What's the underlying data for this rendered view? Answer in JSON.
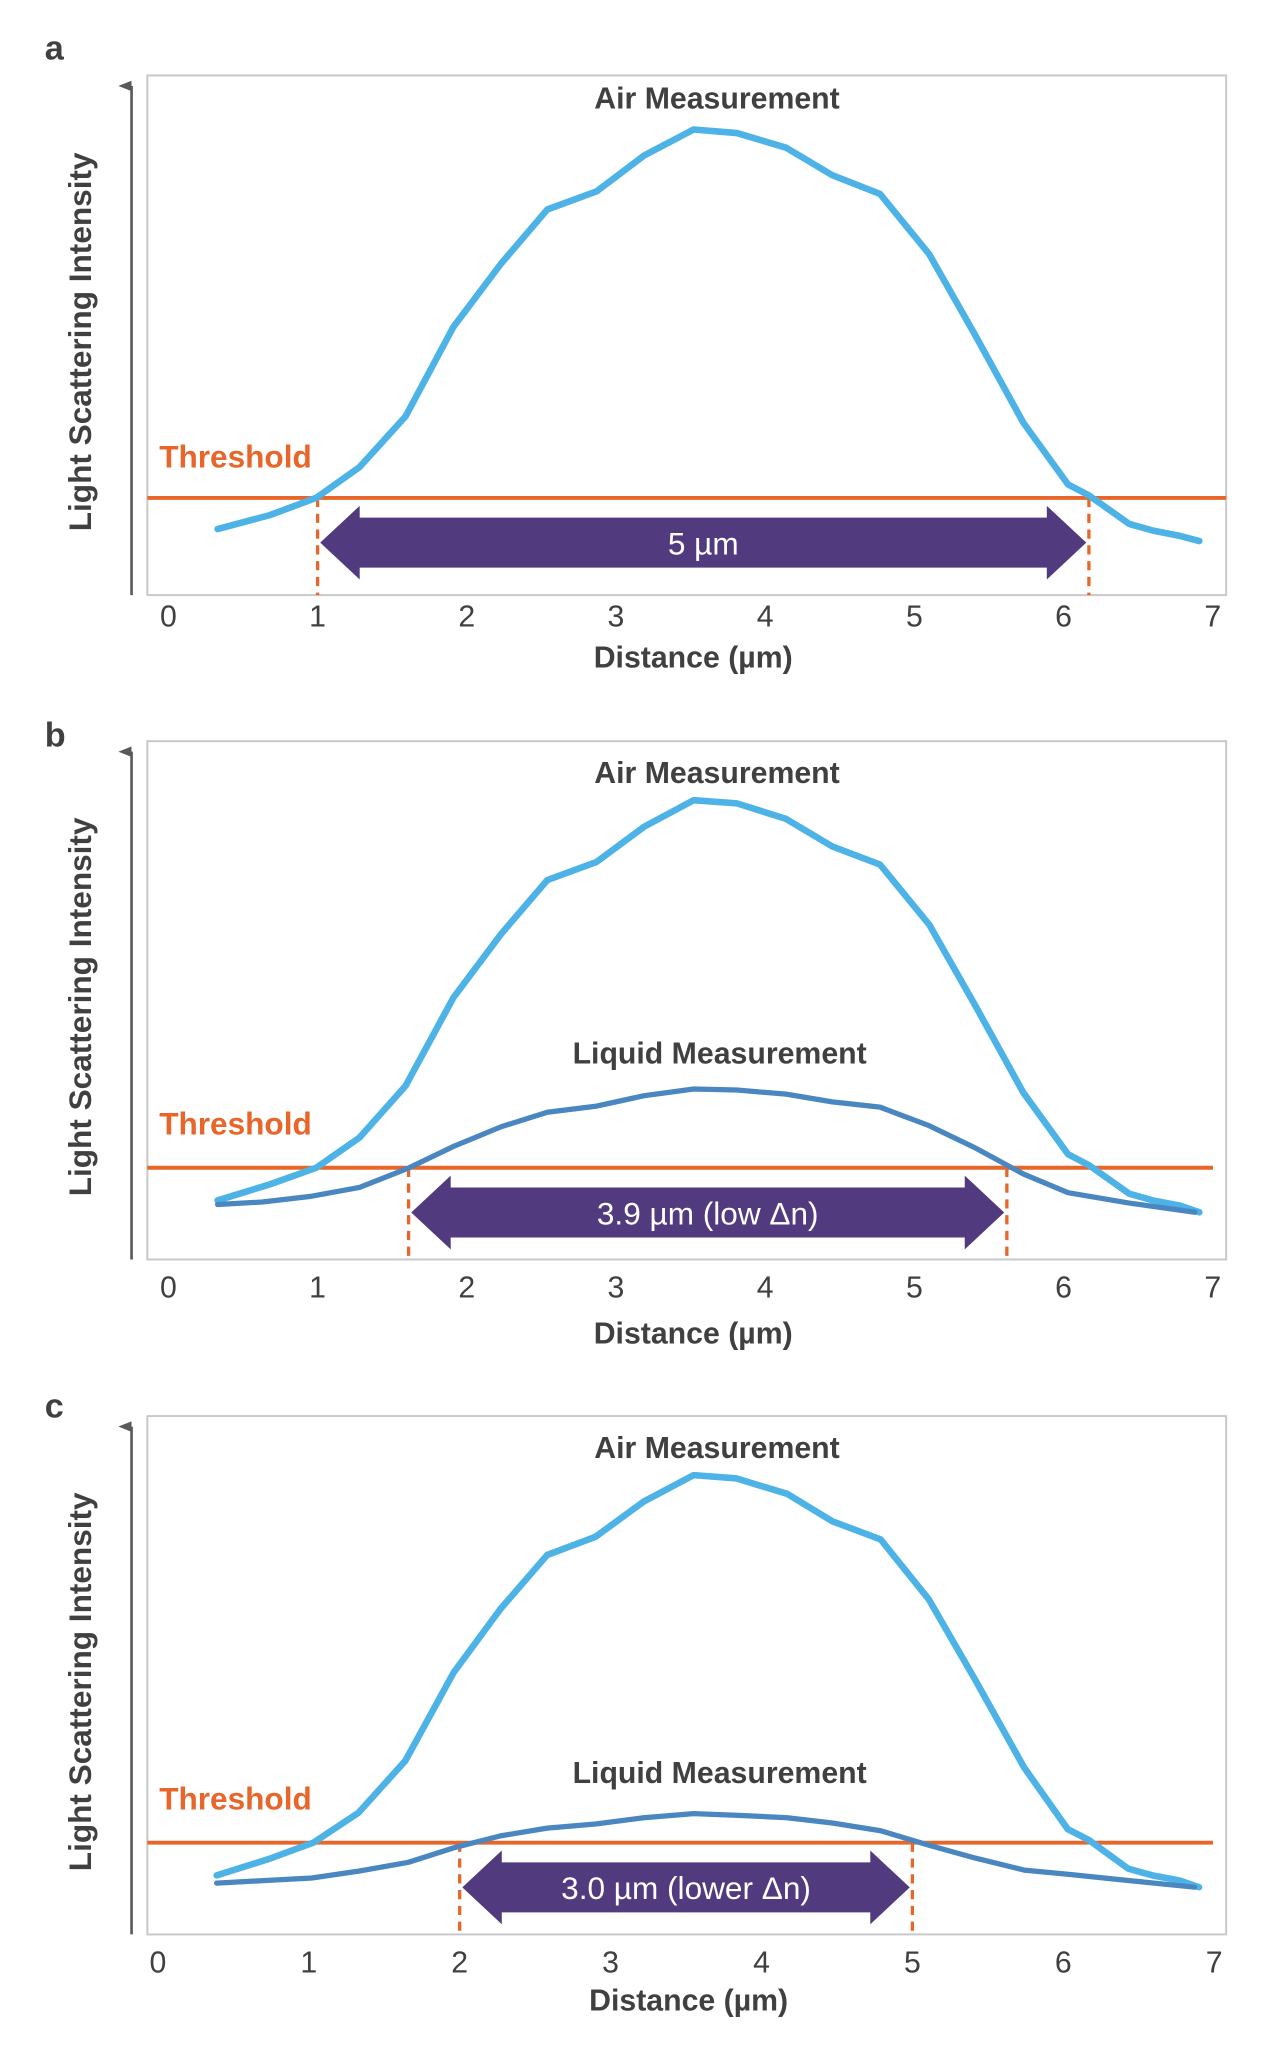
{
  "colors": {
    "air": "#4db3e6",
    "liquid": "#4a86c0",
    "threshold": "#e8662a",
    "arrow": "#523a7e",
    "text": "#404040",
    "frame": "#c8c8c8"
  },
  "chart_data": [
    {
      "type": "line",
      "panel_label": "a",
      "xlabel": "Distance (µm)",
      "ylabel": "Light Scattering Intensity",
      "xlim": [
        0,
        7
      ],
      "ylim": [
        0,
        100
      ],
      "xticks": [
        "0",
        "1",
        "2",
        "3",
        "4",
        "5",
        "6",
        "7"
      ],
      "grid": false,
      "threshold": {
        "label": "Threshold",
        "value": 18.7
      },
      "width_arrow": {
        "label": "5 µm",
        "from": 1.0,
        "to": 6.17
      },
      "series": [
        {
          "name": "Air Measurement",
          "x": [
            0.33,
            0.68,
            0.99,
            1.28,
            1.59,
            1.91,
            2.23,
            2.54,
            2.87,
            3.19,
            3.52,
            3.81,
            4.14,
            4.45,
            4.77,
            5.1,
            5.41,
            5.73,
            6.03,
            6.17,
            6.44,
            6.6,
            6.78,
            6.91
          ],
          "y": [
            12.7,
            15.4,
            18.7,
            24.6,
            34.4,
            51.6,
            63.8,
            74.2,
            77.7,
            84.6,
            89.6,
            88.9,
            86.1,
            80.8,
            77.2,
            65.6,
            49.9,
            33.2,
            21.3,
            19.2,
            13.7,
            12.4,
            11.4,
            10.4
          ]
        }
      ]
    },
    {
      "type": "line",
      "panel_label": "b",
      "xlabel": "Distance (µm)",
      "ylabel": "Light Scattering Intensity",
      "xlim": [
        0,
        7
      ],
      "ylim": [
        0,
        100
      ],
      "xticks": [
        "0",
        "1",
        "2",
        "3",
        "4",
        "5",
        "6",
        "7"
      ],
      "grid": false,
      "threshold": {
        "label": "Threshold",
        "value": 17.7
      },
      "width_arrow": {
        "label": "3.9 µm (low Δn)",
        "from": 1.61,
        "to": 5.62
      },
      "series": [
        {
          "name": "Air Measurement",
          "x": [
            0.33,
            0.68,
            0.99,
            1.28,
            1.59,
            1.91,
            2.23,
            2.54,
            2.87,
            3.19,
            3.52,
            3.81,
            4.14,
            4.45,
            4.77,
            5.1,
            5.41,
            5.73,
            6.03,
            6.17,
            6.44,
            6.6,
            6.78,
            6.91
          ],
          "y": [
            11.4,
            14.5,
            17.7,
            23.5,
            33.5,
            50.5,
            62.8,
            73.2,
            76.7,
            83.5,
            88.6,
            88.0,
            85.0,
            79.7,
            76.2,
            64.6,
            48.9,
            32.2,
            20.3,
            18.2,
            12.7,
            11.4,
            10.4,
            9.1
          ]
        },
        {
          "name": "Liquid Measurement",
          "x": [
            0.33,
            0.63,
            0.96,
            1.28,
            1.6,
            1.91,
            2.23,
            2.54,
            2.87,
            3.19,
            3.52,
            3.81,
            4.14,
            4.45,
            4.77,
            5.1,
            5.41,
            5.73,
            6.03,
            6.44,
            6.88
          ],
          "y": [
            10.6,
            11.1,
            12.2,
            13.9,
            17.5,
            21.8,
            25.6,
            28.4,
            29.6,
            31.6,
            32.9,
            32.7,
            31.9,
            30.4,
            29.4,
            25.8,
            21.5,
            16.5,
            12.9,
            10.9,
            9.1
          ]
        }
      ]
    },
    {
      "type": "line",
      "panel_label": "c",
      "xlabel": "Distance (µm)",
      "ylabel": "Light Scattering Intensity",
      "xlim": [
        0,
        7
      ],
      "ylim": [
        0,
        100
      ],
      "xticks": [
        "0",
        "1",
        "2",
        "3",
        "4",
        "5",
        "6",
        "7"
      ],
      "grid": false,
      "threshold": {
        "label": "Threshold",
        "value": 17.7
      },
      "width_arrow": {
        "label": "3.0 µm (lower Δn)",
        "from": 2.0,
        "to": 5.0
      },
      "series": [
        {
          "name": "Air Measurement",
          "x": [
            0.39,
            0.73,
            1.03,
            1.33,
            1.64,
            1.96,
            2.27,
            2.58,
            2.9,
            3.22,
            3.55,
            3.83,
            4.17,
            4.47,
            4.79,
            5.11,
            5.42,
            5.74,
            6.03,
            6.17,
            6.43,
            6.59,
            6.77,
            6.9
          ],
          "y": [
            11.4,
            14.5,
            17.7,
            23.5,
            33.5,
            50.5,
            62.8,
            73.2,
            76.7,
            83.5,
            88.6,
            88.0,
            85.0,
            79.7,
            76.2,
            64.6,
            48.9,
            32.2,
            20.3,
            18.2,
            12.7,
            11.4,
            10.4,
            9.1
          ]
        },
        {
          "name": "Liquid Measurement",
          "x": [
            0.39,
            1.02,
            1.33,
            1.66,
            1.96,
            2.27,
            2.58,
            2.9,
            3.22,
            3.55,
            3.83,
            4.17,
            4.47,
            4.79,
            5.11,
            5.42,
            5.74,
            6.03,
            6.43,
            6.87
          ],
          "y": [
            9.9,
            10.9,
            12.2,
            13.9,
            16.7,
            19.0,
            20.5,
            21.3,
            22.5,
            23.3,
            23.0,
            22.5,
            21.5,
            20.0,
            17.2,
            14.7,
            12.4,
            11.6,
            10.4,
            9.1
          ]
        }
      ]
    }
  ]
}
